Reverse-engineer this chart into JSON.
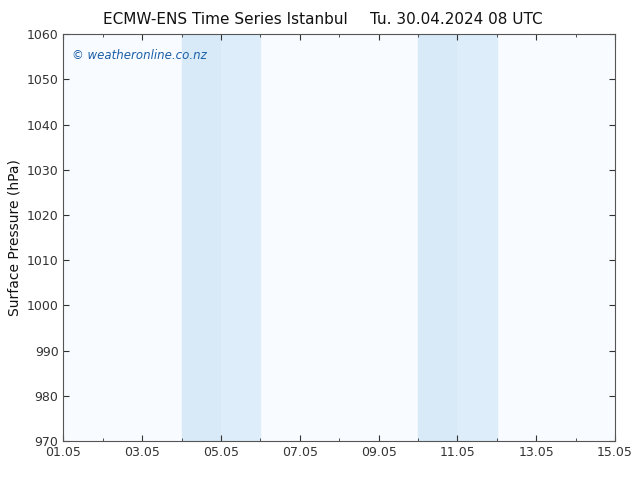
{
  "title_left": "ECMW-ENS Time Series Istanbul",
  "title_right": "Tu. 30.04.2024 08 UTC",
  "ylabel": "Surface Pressure (hPa)",
  "watermark": "© weatheronline.co.nz",
  "xtick_labels": [
    "01.05",
    "03.05",
    "05.05",
    "07.05",
    "09.05",
    "11.05",
    "13.05",
    "15.05"
  ],
  "xtick_positions": [
    0,
    2,
    4,
    6,
    8,
    10,
    12,
    14
  ],
  "xlim": [
    0,
    14
  ],
  "ylim": [
    970,
    1060
  ],
  "ytick_step": 10,
  "shaded_regions": [
    {
      "xstart": 3,
      "xend": 4,
      "color": "#d8eaf7"
    },
    {
      "xstart": 4,
      "xend": 5,
      "color": "#ddedf9"
    },
    {
      "xstart": 9,
      "xend": 10,
      "color": "#d8eaf7"
    },
    {
      "xstart": 10,
      "xend": 11,
      "color": "#ddedf9"
    }
  ],
  "background_color": "#ffffff",
  "plot_bg_color": "#f8fbff",
  "watermark_color": "#1a5fa8",
  "title_color": "#111111",
  "ylabel_color": "#111111",
  "tick_color": "#333333",
  "spine_color": "#555555",
  "title_fontsize": 11,
  "ylabel_fontsize": 10,
  "tick_fontsize": 9,
  "watermark_fontsize": 8.5
}
